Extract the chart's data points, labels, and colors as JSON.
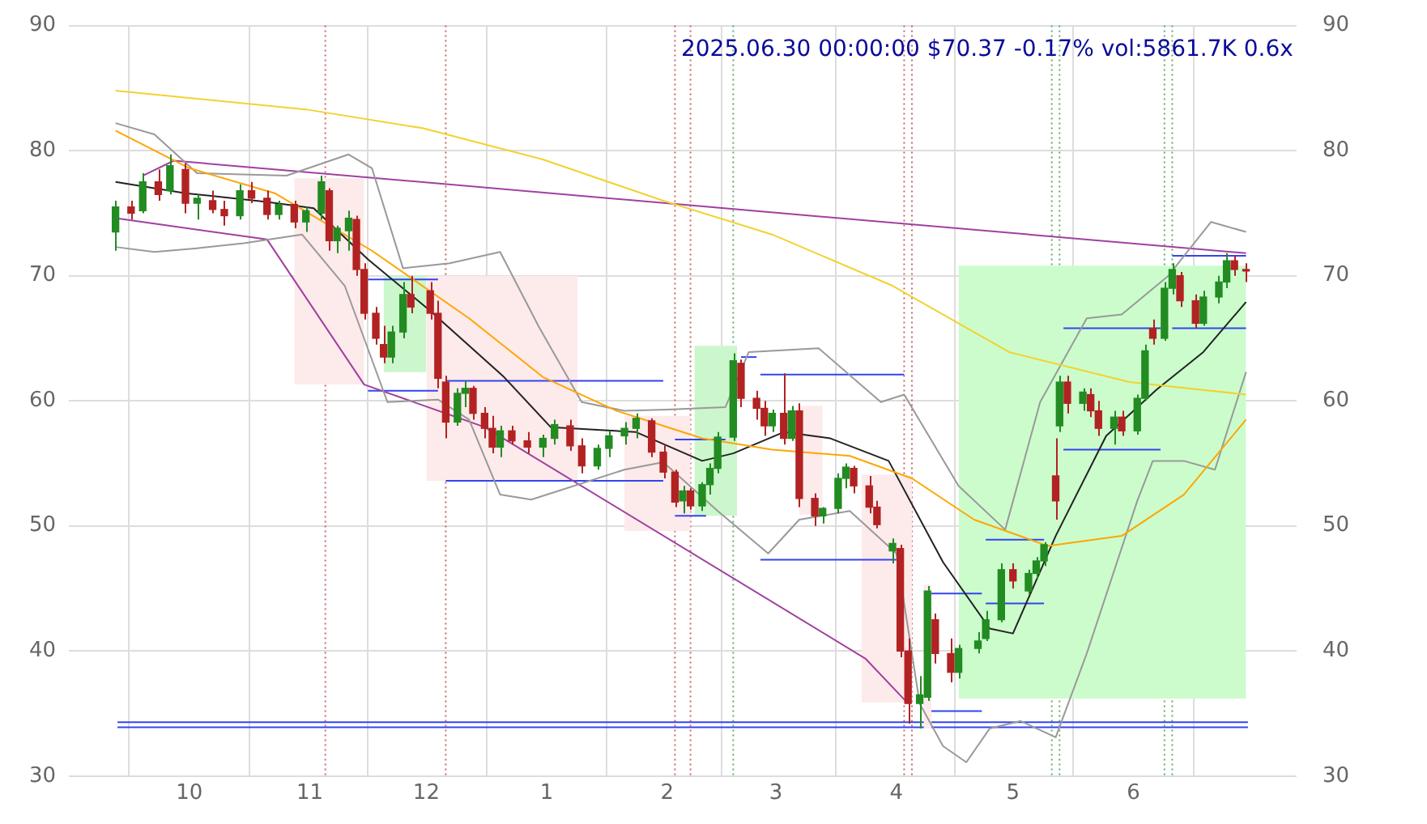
{
  "chart_data": {
    "type": "candlestick",
    "title": "2025.06.30 00:00:00 $70.37 -0.17% vol:5861.7K 0.6x",
    "x": [
      "2024-09-12",
      "2024-09-16",
      "2024-09-19",
      "2024-09-23",
      "2024-09-26",
      "2024-09-30",
      "2024-10-03",
      "2024-10-07",
      "2024-10-10",
      "2024-10-14",
      "2024-10-17",
      "2024-10-21",
      "2024-10-24",
      "2024-10-28",
      "2024-10-31",
      "2024-11-04",
      "2024-11-06",
      "2024-11-08",
      "2024-11-11",
      "2024-11-13",
      "2024-11-15",
      "2024-11-18",
      "2024-11-20",
      "2024-11-22",
      "2024-11-25",
      "2024-11-27",
      "2024-12-02",
      "2024-12-04",
      "2024-12-06",
      "2024-12-09",
      "2024-12-11",
      "2024-12-13",
      "2024-12-16",
      "2024-12-18",
      "2024-12-20",
      "2024-12-23",
      "2024-12-27",
      "2024-12-31",
      "2025-01-03",
      "2025-01-07",
      "2025-01-10",
      "2025-01-14",
      "2025-01-17",
      "2025-01-21",
      "2025-01-24",
      "2025-01-28",
      "2025-01-31",
      "2025-02-03",
      "2025-02-05",
      "2025-02-07",
      "2025-02-10",
      "2025-02-12",
      "2025-02-14",
      "2025-02-18",
      "2025-02-20",
      "2025-02-24",
      "2025-02-26",
      "2025-02-28",
      "2025-03-03",
      "2025-03-05",
      "2025-03-07",
      "2025-03-11",
      "2025-03-13",
      "2025-03-17",
      "2025-03-19",
      "2025-03-21",
      "2025-03-25",
      "2025-03-27",
      "2025-03-31",
      "2025-04-02",
      "2025-04-04",
      "2025-04-07",
      "2025-04-09",
      "2025-04-11",
      "2025-04-15",
      "2025-04-17",
      "2025-04-22",
      "2025-04-24",
      "2025-04-28",
      "2025-05-01",
      "2025-05-05",
      "2025-05-07",
      "2025-05-09",
      "2025-05-12",
      "2025-05-13",
      "2025-05-15",
      "2025-05-19",
      "2025-05-21",
      "2025-05-23",
      "2025-05-27",
      "2025-05-29",
      "2025-06-02",
      "2025-06-04",
      "2025-06-06",
      "2025-06-09",
      "2025-06-11",
      "2025-06-13",
      "2025-06-17",
      "2025-06-19",
      "2025-06-23",
      "2025-06-25",
      "2025-06-27",
      "2025-06-30"
    ],
    "ohlc": [
      [
        73.5,
        76,
        72,
        75.5
      ],
      [
        75.5,
        76,
        74.5,
        75
      ],
      [
        75.2,
        78.2,
        75,
        77.5
      ],
      [
        77.5,
        78.5,
        76,
        76.5
      ],
      [
        76.8,
        79.7,
        76.5,
        78.8
      ],
      [
        78.5,
        79,
        75,
        75.8
      ],
      [
        75.8,
        76.5,
        74.5,
        76.2
      ],
      [
        76,
        76.8,
        75,
        75.3
      ],
      [
        75.3,
        76,
        74,
        74.8
      ],
      [
        74.8,
        77.3,
        74.5,
        76.8
      ],
      [
        76.8,
        77.5,
        75.8,
        76.2
      ],
      [
        76.2,
        76.8,
        74.5,
        74.9
      ],
      [
        74.9,
        76,
        74.5,
        75.7
      ],
      [
        75.7,
        76,
        73.8,
        74.3
      ],
      [
        74.3,
        75.5,
        73.5,
        75.2
      ],
      [
        75,
        78,
        74.5,
        77.5
      ],
      [
        76.8,
        77,
        72,
        72.8
      ],
      [
        72.8,
        74,
        71.8,
        73.8
      ],
      [
        73.6,
        75.2,
        72,
        74.6
      ],
      [
        74.5,
        74.8,
        70,
        70.5
      ],
      [
        70.5,
        71,
        66.5,
        67
      ],
      [
        67,
        67.5,
        64.5,
        65
      ],
      [
        64.5,
        66,
        63,
        63.5
      ],
      [
        63.5,
        66,
        63,
        65.5
      ],
      [
        65.5,
        69.5,
        65,
        68.5
      ],
      [
        68.5,
        70,
        67,
        67.5
      ],
      [
        68.8,
        69.5,
        66.5,
        67
      ],
      [
        67,
        68,
        61,
        61.8
      ],
      [
        61.5,
        62,
        57,
        58.3
      ],
      [
        58.3,
        61,
        58,
        60.6
      ],
      [
        60.6,
        61.6,
        59.5,
        61
      ],
      [
        61,
        61.2,
        58.5,
        59
      ],
      [
        59,
        59.5,
        57,
        57.8
      ],
      [
        57.8,
        58.8,
        55.8,
        56.3
      ],
      [
        56.3,
        58,
        55.5,
        57.6
      ],
      [
        57.6,
        58,
        56.5,
        56.8
      ],
      [
        56.8,
        57.5,
        55.8,
        56.3
      ],
      [
        56.3,
        57.3,
        55.5,
        57
      ],
      [
        57,
        58.5,
        56.5,
        58.1
      ],
      [
        58,
        58.5,
        56,
        56.4
      ],
      [
        56.4,
        57,
        54.2,
        54.8
      ],
      [
        54.8,
        56.5,
        54.5,
        56.2
      ],
      [
        56.2,
        57.6,
        55.5,
        57.2
      ],
      [
        57.2,
        58.3,
        56.5,
        57.8
      ],
      [
        57.8,
        59,
        57,
        58.6
      ],
      [
        58.4,
        58.6,
        55.5,
        55.9
      ],
      [
        55.9,
        56.5,
        53.8,
        54.3
      ],
      [
        54.3,
        54.5,
        51.5,
        51.9
      ],
      [
        52,
        53.2,
        51,
        52.8
      ],
      [
        52.8,
        53,
        51.3,
        51.6
      ],
      [
        51.6,
        53.5,
        51.2,
        53.3
      ],
      [
        53.3,
        55,
        52.5,
        54.6
      ],
      [
        54.6,
        57.5,
        54.2,
        57.1
      ],
      [
        57.1,
        63.8,
        56.8,
        63.2
      ],
      [
        63,
        63.3,
        59.5,
        60.2
      ],
      [
        60.2,
        60.8,
        58.5,
        59.4
      ],
      [
        59.4,
        60,
        57.2,
        58
      ],
      [
        58,
        59.3,
        57.5,
        59
      ],
      [
        59,
        62.2,
        56.5,
        57
      ],
      [
        57,
        59.6,
        56.8,
        59.2
      ],
      [
        59.2,
        59.8,
        51.5,
        52.2
      ],
      [
        52.2,
        52.6,
        50,
        50.8
      ],
      [
        50.8,
        51.5,
        50.2,
        51.4
      ],
      [
        51.4,
        54.2,
        51,
        53.8
      ],
      [
        53.8,
        55,
        53,
        54.7
      ],
      [
        54.6,
        54.8,
        52.6,
        53.2
      ],
      [
        53.2,
        54,
        51,
        51.5
      ],
      [
        51.5,
        52,
        49.8,
        50.1
      ],
      [
        48,
        49,
        47,
        48.6
      ],
      [
        48.2,
        48.5,
        39.5,
        40
      ],
      [
        40,
        41,
        34.2,
        35.8
      ],
      [
        35.8,
        38,
        33.8,
        36.5
      ],
      [
        36.3,
        45.2,
        36,
        44.8
      ],
      [
        42.5,
        43,
        39,
        39.8
      ],
      [
        39.8,
        41,
        37.5,
        38.3
      ],
      [
        38.3,
        40.5,
        37.8,
        40.2
      ],
      [
        40.2,
        41.5,
        39.8,
        40.8
      ],
      [
        41,
        43.2,
        40.8,
        42.5
      ],
      [
        42.5,
        47,
        42.3,
        46.5
      ],
      [
        46.5,
        47,
        45,
        45.6
      ],
      [
        44.8,
        46.5,
        44.5,
        46.2
      ],
      [
        46.2,
        47.5,
        45.8,
        47.2
      ],
      [
        47.2,
        48.7,
        46.8,
        48.5
      ],
      [
        54,
        57,
        50.5,
        52
      ],
      [
        58,
        62,
        57.5,
        61.5
      ],
      [
        61.5,
        62,
        59,
        59.8
      ],
      [
        59.8,
        61,
        59.2,
        60.7
      ],
      [
        60.5,
        61,
        58.7,
        59.2
      ],
      [
        59.2,
        60,
        57.2,
        57.8
      ],
      [
        57.8,
        59.2,
        56.5,
        58.7
      ],
      [
        58.7,
        59.2,
        57.2,
        57.6
      ],
      [
        57.6,
        60.5,
        57.3,
        60.2
      ],
      [
        60.2,
        64.5,
        60,
        64
      ],
      [
        65.8,
        66.5,
        64.5,
        65
      ],
      [
        65,
        69.5,
        64.8,
        69
      ],
      [
        69,
        71,
        68.5,
        70.5
      ],
      [
        70,
        70.3,
        67.5,
        68
      ],
      [
        68,
        68.5,
        65.8,
        66.2
      ],
      [
        66.2,
        68.8,
        66,
        68.3
      ],
      [
        68.3,
        70,
        67.8,
        69.5
      ],
      [
        69.5,
        71.8,
        69,
        71.2
      ],
      [
        71.2,
        71.6,
        70,
        70.5
      ],
      [
        70.5,
        71,
        69.5,
        70.37
      ]
    ],
    "colors": [
      "#228b22",
      "#b22222",
      "#228b22",
      "#b22222",
      "#228b22",
      "#b22222",
      "#228b22",
      "#b22222",
      "#b22222",
      "#228b22",
      "#b22222",
      "#b22222",
      "#228b22",
      "#b22222",
      "#228b22",
      "#228b22",
      "#b22222",
      "#228b22",
      "#228b22",
      "#b22222",
      "#b22222",
      "#b22222",
      "#b22222",
      "#228b22",
      "#228b22",
      "#b22222",
      "#b22222",
      "#b22222",
      "#b22222",
      "#228b22",
      "#228b22",
      "#b22222",
      "#b22222",
      "#b22222",
      "#228b22",
      "#b22222",
      "#b22222",
      "#228b22",
      "#228b22",
      "#b22222",
      "#b22222",
      "#228b22",
      "#228b22",
      "#228b22",
      "#228b22",
      "#b22222",
      "#b22222",
      "#b22222",
      "#228b22",
      "#b22222",
      "#228b22",
      "#228b22",
      "#228b22",
      "#228b22",
      "#b22222",
      "#b22222",
      "#b22222",
      "#228b22",
      "#b22222",
      "#228b22",
      "#b22222",
      "#b22222",
      "#228b22",
      "#228b22",
      "#228b22",
      "#b22222",
      "#b22222",
      "#b22222",
      "#228b22",
      "#b22222",
      "#b22222",
      "#228b22",
      "#228b22",
      "#b22222",
      "#b22222",
      "#228b22",
      "#228b22",
      "#228b22",
      "#228b22",
      "#b22222",
      "#228b22",
      "#228b22",
      "#228b22",
      "#b22222",
      "#228b22",
      "#b22222",
      "#228b22",
      "#b22222",
      "#b22222",
      "#228b22",
      "#b22222",
      "#228b22",
      "#228b22",
      "#b22222",
      "#228b22",
      "#228b22",
      "#b22222",
      "#b22222",
      "#228b22",
      "#228b22",
      "#228b22",
      "#b22222",
      "#b22222"
    ],
    "series": [
      {
        "type": "area",
        "color": "#fdeaea",
        "x": [
          "2024-10-28",
          "2024-11-15"
        ],
        "values": [
          null,
          null
        ],
        "lower": [
          61.3,
          61.3
        ],
        "upper": [
          77.8,
          77.8
        ]
      },
      {
        "type": "area",
        "color": "#ccf7cc",
        "x": [
          "2024-11-20",
          "2024-12-01"
        ],
        "values": [
          null,
          null
        ],
        "lower": [
          62.3,
          62.3
        ],
        "upper": [
          70,
          70
        ]
      },
      {
        "type": "area",
        "color": "#fdeaea",
        "x": [
          "2024-12-01",
          "2025-01-09"
        ],
        "values": [
          null,
          null
        ],
        "lower": [
          53.6,
          53.6
        ],
        "upper": [
          70,
          70
        ]
      },
      {
        "type": "area",
        "color": "#fdeaea",
        "x": [
          "2025-01-21",
          "2025-02-07"
        ],
        "values": [
          null,
          null
        ],
        "lower": [
          49.6,
          49.6
        ],
        "upper": [
          58.8,
          58.8
        ]
      },
      {
        "type": "area",
        "color": "#ccf7cc",
        "x": [
          "2025-02-08",
          "2025-02-19"
        ],
        "values": [
          null,
          null
        ],
        "lower": [
          50.8,
          50.8
        ],
        "upper": [
          64.4,
          64.4
        ]
      },
      {
        "type": "area",
        "color": "#fdeaea",
        "x": [
          "2025-03-07",
          "2025-03-13"
        ],
        "values": [
          null,
          null
        ],
        "lower": [
          50.9,
          50.9
        ],
        "upper": [
          59.6,
          59.6
        ]
      },
      {
        "type": "area",
        "color": "#fdeaea",
        "x": [
          "2025-03-23",
          "2025-04-05"
        ],
        "values": [
          null,
          null
        ],
        "lower": [
          35.9,
          35.9
        ],
        "upper": [
          54.1,
          54.1
        ]
      },
      {
        "type": "area",
        "color": "#fdeaea",
        "x": [
          "2025-04-08",
          "2025-04-10"
        ],
        "values": [
          null,
          null
        ],
        "lower": [
          33.8,
          33.8
        ],
        "upper": [
          45.3,
          45.3
        ]
      },
      {
        "type": "area",
        "color": "#ccfccc",
        "x": [
          "2025-04-17",
          "2025-06-30"
        ],
        "values": [
          null,
          null
        ],
        "lower": [
          36.2,
          36.2
        ],
        "upper": [
          70.8,
          70.8
        ]
      },
      {
        "type": "line",
        "color": "#f2d230",
        "x": [
          "2024-09-12",
          "2024-10-31",
          "2024-11-30",
          "2024-12-31",
          "2025-01-31",
          "2025-02-28",
          "2025-03-31",
          "2025-04-30",
          "2025-05-31",
          "2025-06-30"
        ],
        "values": [
          84.8,
          83.3,
          81.8,
          79.3,
          76,
          73.3,
          69.2,
          63.9,
          61.5,
          60.5
        ]
      },
      {
        "type": "line",
        "color": "#ffa500",
        "x": [
          "2024-09-12",
          "2024-10-01",
          "2024-10-23",
          "2024-11-17",
          "2024-12-12",
          "2024-12-31",
          "2025-01-19",
          "2025-02-10",
          "2025-02-28",
          "2025-03-20",
          "2025-04-05",
          "2025-04-21",
          "2025-05-10",
          "2025-05-29",
          "2025-06-14",
          "2025-06-30"
        ],
        "values": [
          81.6,
          78.6,
          76.6,
          72,
          66.6,
          61.9,
          59.2,
          57,
          56.1,
          55.6,
          53.8,
          50.5,
          48.4,
          49.2,
          52.5,
          58.5
        ]
      },
      {
        "type": "line",
        "color": "#222222",
        "x": [
          "2024-09-12",
          "2024-09-30",
          "2024-10-21",
          "2024-11-02",
          "2024-11-16",
          "2024-12-02",
          "2024-12-21",
          "2025-01-02",
          "2025-01-24",
          "2025-02-10",
          "2025-02-18",
          "2025-03-03",
          "2025-03-15",
          "2025-03-30",
          "2025-04-13",
          "2025-04-25",
          "2025-05-01",
          "2025-05-12",
          "2025-05-25",
          "2025-06-07",
          "2025-06-19",
          "2025-06-30"
        ],
        "values": [
          77.5,
          76.6,
          75.9,
          75.4,
          71.3,
          67.2,
          61.9,
          57.9,
          57.5,
          55.2,
          55.8,
          57.5,
          57,
          55.2,
          47.1,
          41.8,
          41.4,
          49.2,
          57.2,
          60.9,
          63.9,
          67.9
        ]
      },
      {
        "type": "line",
        "color": "#999999",
        "x": [
          "2024-09-12",
          "2024-09-22",
          "2024-10-03",
          "2024-10-26",
          "2024-11-11",
          "2024-11-17",
          "2024-11-25",
          "2024-12-07",
          "2024-12-20",
          "2024-12-30",
          "2025-01-10",
          "2025-01-21",
          "2025-02-01",
          "2025-02-16",
          "2025-02-22",
          "2025-03-12",
          "2025-03-28",
          "2025-04-03",
          "2025-04-17",
          "2025-04-29",
          "2025-05-08",
          "2025-05-20",
          "2025-05-29",
          "2025-06-10",
          "2025-06-21",
          "2025-06-30"
        ],
        "values": [
          82.2,
          81.3,
          78.2,
          78,
          79.7,
          78.6,
          70.6,
          71,
          71.9,
          65.9,
          59.9,
          59.2,
          59.3,
          59.5,
          63.9,
          64.2,
          59.9,
          60.5,
          53.2,
          49.7,
          59.9,
          66.6,
          66.9,
          70,
          74.3,
          73.5
        ]
      },
      {
        "type": "line",
        "color": "#999999",
        "x": [
          "2024-09-12",
          "2024-09-22",
          "2024-10-03",
          "2024-10-15",
          "2024-10-30",
          "2024-11-10",
          "2024-11-21",
          "2024-12-04",
          "2024-12-12",
          "2024-12-20",
          "2024-12-28",
          "2025-01-21",
          "2025-01-31",
          "2025-02-14",
          "2025-02-27",
          "2025-03-07",
          "2025-03-20",
          "2025-04-01",
          "2025-04-07",
          "2025-04-13",
          "2025-04-19",
          "2025-04-25",
          "2025-05-03",
          "2025-05-12",
          "2025-05-20",
          "2025-06-02",
          "2025-06-06",
          "2025-06-14",
          "2025-06-22",
          "2025-06-30"
        ],
        "values": [
          72.3,
          71.9,
          72.2,
          72.6,
          73.3,
          69.2,
          59.9,
          60.1,
          58.5,
          52.5,
          52.1,
          54.5,
          55.1,
          51.2,
          47.8,
          50.5,
          51.2,
          47.8,
          35.8,
          32.4,
          31.1,
          33.8,
          34.4,
          33.1,
          39.8,
          52,
          55.2,
          55.2,
          54.5,
          62.3
        ]
      },
      {
        "type": "line",
        "color": "#a040a0",
        "x": [
          "2024-09-19",
          "2024-09-27",
          "2025-06-30"
        ],
        "values": [
          78,
          79.2,
          71.8
        ]
      },
      {
        "type": "line",
        "color": "#a040a0",
        "x": [
          "2024-09-12",
          "2024-10-21",
          "2024-11-15",
          "2024-12-16",
          "2025-03-24",
          "2025-04-04"
        ],
        "values": [
          74.6,
          72.9,
          61.3,
          57.9,
          39.4,
          35.8
        ]
      },
      {
        "type": "line",
        "color": "#3344ee",
        "x": [
          "2024-11-16",
          "2024-12-04"
        ],
        "values": [
          69.7,
          69.7
        ]
      },
      {
        "type": "line",
        "color": "#3344ee",
        "x": [
          "2024-11-16",
          "2024-12-04"
        ],
        "values": [
          60.8,
          60.8
        ]
      },
      {
        "type": "line",
        "color": "#3344ee",
        "x": [
          "2024-12-06",
          "2025-01-31"
        ],
        "values": [
          61.6,
          61.6
        ]
      },
      {
        "type": "line",
        "color": "#3344ee",
        "x": [
          "2024-12-06",
          "2025-01-31"
        ],
        "values": [
          53.6,
          53.6
        ]
      },
      {
        "type": "line",
        "color": "#3344ee",
        "x": [
          "2025-02-03",
          "2025-02-16"
        ],
        "values": [
          56.9,
          56.9
        ]
      },
      {
        "type": "line",
        "color": "#3344ee",
        "x": [
          "2025-02-03",
          "2025-02-11"
        ],
        "values": [
          50.8,
          50.8
        ]
      },
      {
        "type": "line",
        "color": "#3344ee",
        "x": [
          "2025-02-20",
          "2025-02-24"
        ],
        "values": [
          63.5,
          63.5
        ]
      },
      {
        "type": "line",
        "color": "#3344ee",
        "x": [
          "2025-02-25",
          "2025-04-03"
        ],
        "values": [
          62.1,
          62.1
        ]
      },
      {
        "type": "line",
        "color": "#3344ee",
        "x": [
          "2025-02-25",
          "2025-04-01"
        ],
        "values": [
          47.3,
          47.3
        ]
      },
      {
        "type": "line",
        "color": "#3344ee",
        "x": [
          "2025-04-10",
          "2025-04-23"
        ],
        "values": [
          44.6,
          44.6
        ]
      },
      {
        "type": "line",
        "color": "#3344ee",
        "x": [
          "2025-04-10",
          "2025-04-23"
        ],
        "values": [
          35.2,
          35.2
        ]
      },
      {
        "type": "line",
        "color": "#3344ee",
        "x": [
          "2025-04-24",
          "2025-05-09"
        ],
        "values": [
          48.9,
          48.9
        ]
      },
      {
        "type": "line",
        "color": "#3344ee",
        "x": [
          "2025-04-24",
          "2025-05-09"
        ],
        "values": [
          43.8,
          43.8
        ]
      },
      {
        "type": "line",
        "color": "#3344ee",
        "x": [
          "2025-05-14",
          "2025-06-08"
        ],
        "values": [
          65.8,
          65.8
        ]
      },
      {
        "type": "line",
        "color": "#3344ee",
        "x": [
          "2025-05-14",
          "2025-06-08"
        ],
        "values": [
          56.1,
          56.1
        ]
      },
      {
        "type": "line",
        "color": "#3344ee",
        "x": [
          "2025-06-11",
          "2025-06-30"
        ],
        "values": [
          71.6,
          71.6
        ]
      },
      {
        "type": "line",
        "color": "#3344ee",
        "x": [
          "2025-06-11",
          "2025-06-30"
        ],
        "values": [
          65.8,
          65.8
        ]
      }
    ],
    "ref_lines": [
      {
        "axis": "x",
        "value": "2024-11-05",
        "color": "#cc6666",
        "line_style": "dotted"
      },
      {
        "axis": "x",
        "value": "2024-12-06",
        "color": "#cc6666",
        "line_style": "dotted"
      },
      {
        "axis": "x",
        "value": "2025-02-03",
        "color": "#cc6666",
        "line_style": "dotted"
      },
      {
        "axis": "x",
        "value": "2025-02-07",
        "color": "#cc6666",
        "line_style": "dotted"
      },
      {
        "axis": "x",
        "value": "2025-02-18",
        "color": "#66aa66",
        "line_style": "dotted"
      },
      {
        "axis": "x",
        "value": "2025-04-03",
        "color": "#cc6666",
        "line_style": "dotted"
      },
      {
        "axis": "x",
        "value": "2025-04-05",
        "color": "#cc6666",
        "line_style": "dotted"
      },
      {
        "axis": "x",
        "value": "2025-05-11",
        "color": "#66aa66",
        "line_style": "dotted"
      },
      {
        "axis": "x",
        "value": "2025-05-13",
        "color": "#66aa66",
        "line_style": "dotted"
      },
      {
        "axis": "x",
        "value": "2025-06-09",
        "color": "#66aa66",
        "line_style": "dotted"
      },
      {
        "axis": "x",
        "value": "2025-06-11",
        "color": "#66aa66",
        "line_style": "dotted"
      },
      {
        "axis": "y",
        "value": 34.3,
        "color": "#3344ee",
        "line_style": "solid"
      },
      {
        "axis": "y",
        "value": 33.9,
        "color": "#3344ee",
        "line_style": "solid"
      }
    ],
    "xlim": [
      "2024-08-31",
      "2025-07-13"
    ],
    "xticks": [
      {
        "value": "2024-10-01",
        "label": "10"
      },
      {
        "value": "2024-11-01",
        "label": "11"
      },
      {
        "value": "2024-12-01",
        "label": "12"
      },
      {
        "value": "2025-01-01",
        "label": "1"
      },
      {
        "value": "2025-02-01",
        "label": "2"
      },
      {
        "value": "2025-03-01",
        "label": "3"
      },
      {
        "value": "2025-04-01",
        "label": "4"
      },
      {
        "value": "2025-05-01",
        "label": "5"
      },
      {
        "value": "2025-06-01",
        "label": "6"
      }
    ],
    "ylim": [
      30,
      90
    ],
    "yticks": [
      30,
      40,
      50,
      60,
      70,
      80,
      90
    ],
    "y2lim": [
      30,
      90
    ],
    "y2ticks": [
      30,
      40,
      50,
      60,
      70,
      80,
      90
    ],
    "grid": true,
    "legend": false
  }
}
